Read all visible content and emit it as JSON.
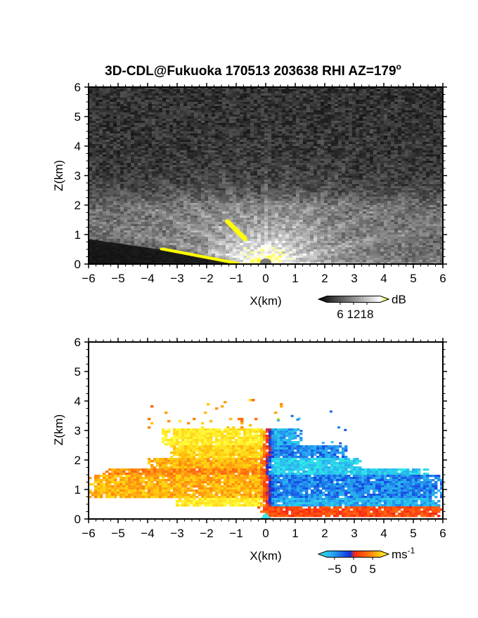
{
  "title": "3D-CDL@Fukuoka 170513 203638 RHI AZ=179",
  "title_superscript": "o",
  "chart_data": [
    {
      "type": "heatmap",
      "name": "reflectivity",
      "xlabel": "X(km)",
      "ylabel": "Z(km)",
      "xlim": [
        -6,
        6
      ],
      "ylim": [
        0,
        6
      ],
      "xticks": [
        "-6",
        "-5",
        "-4",
        "-3",
        "-2",
        "-1",
        "0",
        "1",
        "2",
        "3",
        "4",
        "5",
        "6"
      ],
      "yticks": [
        "0",
        "1",
        "2",
        "3",
        "4",
        "5",
        "6"
      ],
      "colorbar": {
        "unit": "dB",
        "ticks": [
          "6",
          "12",
          "18"
        ],
        "tick_values": [
          6,
          12,
          18
        ],
        "range": [
          0,
          24
        ],
        "colormap": [
          "#000000",
          "#555555",
          "#aaaaaa",
          "#ffffff",
          "#ffff00"
        ]
      },
      "features": {
        "bright_layer_top_km": 2.0,
        "source_point_km": [
          0,
          0
        ],
        "yellow_streak": [
          [
            -1.3,
            1.45
          ],
          [
            -0.7,
            0.85
          ]
        ],
        "ground_echo": [
          [
            -3.5,
            0.48
          ],
          [
            -1.0,
            0.0
          ]
        ]
      }
    },
    {
      "type": "heatmap",
      "name": "doppler-velocity",
      "xlabel": "X(km)",
      "ylabel": "Z(km)",
      "xlim": [
        -6,
        6
      ],
      "ylim": [
        0,
        6
      ],
      "xticks": [
        "-6",
        "-5",
        "-4",
        "-3",
        "-2",
        "-1",
        "0",
        "1",
        "2",
        "3",
        "4",
        "5",
        "6"
      ],
      "yticks": [
        "0",
        "1",
        "2",
        "3",
        "4",
        "5",
        "6"
      ],
      "colorbar": {
        "unit": "ms",
        "unit_superscript": "-1",
        "ticks": [
          "-5",
          "0",
          "5"
        ],
        "tick_values": [
          -5,
          0,
          5
        ],
        "range": [
          -7,
          7
        ],
        "colormap": [
          "#30e8e8",
          "#28a8f0",
          "#1030e0",
          "#ff2a10",
          "#ff7010",
          "#ffd010",
          "#ffff40"
        ]
      },
      "layers": [
        {
          "zmin": 0.05,
          "zmax": 0.4,
          "left": [
            -0.3,
            2
          ],
          "right": [
            6,
            1
          ]
        },
        {
          "zmin": 0.4,
          "zmax": 0.75,
          "left": [
            -3,
            6
          ],
          "right": [
            5.9,
            -5
          ]
        },
        {
          "zmin": 0.75,
          "zmax": 1.5,
          "left": [
            -6,
            4
          ],
          "right": [
            6,
            -4
          ]
        },
        {
          "zmin": 1.5,
          "zmax": 1.75,
          "left": [
            -5.5,
            3
          ],
          "right": [
            5.5,
            -6
          ]
        },
        {
          "zmin": 1.75,
          "zmax": 2.05,
          "left": [
            -4,
            4
          ],
          "right": [
            3.2,
            -6
          ]
        },
        {
          "zmin": 2.05,
          "zmax": 2.5,
          "left": [
            -3.2,
            5
          ],
          "right": [
            2.8,
            -4
          ]
        },
        {
          "zmin": 2.5,
          "zmax": 3.1,
          "left": [
            -3.5,
            6
          ],
          "right": [
            1.2,
            -5
          ]
        }
      ]
    }
  ]
}
